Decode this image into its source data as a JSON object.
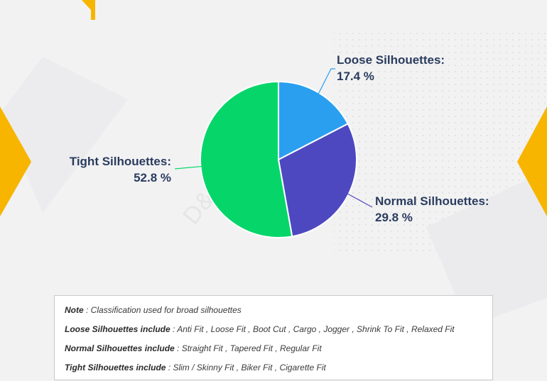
{
  "chart_data": {
    "type": "pie",
    "title": "",
    "slices": [
      {
        "name": "Loose Silhouettes:",
        "value": 17.4,
        "value_label": "17.4 %",
        "color": "#2a9ff0"
      },
      {
        "name": "Normal Silhouettes:",
        "value": 29.8,
        "value_label": "29.8 %",
        "color": "#4e48c0"
      },
      {
        "name": "Tight Silhouettes:",
        "value": 52.8,
        "value_label": "52.8 %",
        "color": "#06d66a"
      }
    ]
  },
  "watermark": "D&J Reports",
  "notes": [
    {
      "label": "Note",
      "text": " : Classification used for broad silhouettes"
    },
    {
      "label": "Loose Silhouettes include",
      "text": " : Anti Fit , Loose Fit , Boot Cut , Cargo , Jogger , Shrink To Fit , Relaxed Fit"
    },
    {
      "label": "Normal Silhouettes include",
      "text": " : Straight Fit , Tapered Fit , Regular Fit"
    },
    {
      "label": "Tight Silhouettes include",
      "text": " : Slim / Skinny Fit , Biker Fit , Cigarette Fit"
    }
  ],
  "colors": {
    "accent_orange": "#f7b500",
    "label_text": "#2a3c5e"
  }
}
